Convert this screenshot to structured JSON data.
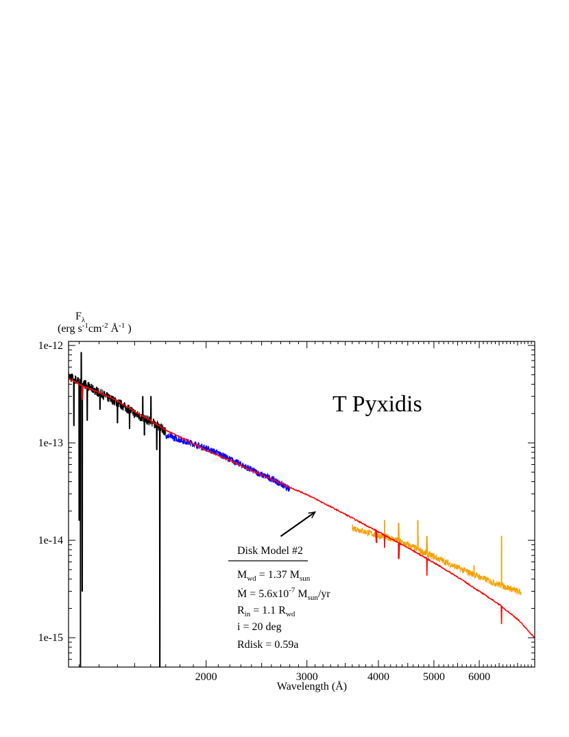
{
  "chart_data": {
    "type": "line",
    "title": "T Pyxidis",
    "xlabel": "Wavelength (Å)",
    "ylabel": {
      "line1": "F",
      "line1_sub": "λ",
      "line2_parts": [
        "(erg s",
        "-1",
        "cm",
        "-2",
        " Å",
        "-1",
        " )"
      ]
    },
    "x_scale": "log",
    "y_scale": "log",
    "xlim": [
      1150,
      7500
    ],
    "ylim": [
      5e-16,
      1.1e-12
    ],
    "x_ticks": [
      {
        "value": 2000,
        "label": "2000"
      },
      {
        "value": 3000,
        "label": "3000"
      },
      {
        "value": 4000,
        "label": "4000"
      },
      {
        "value": 5000,
        "label": "5000"
      },
      {
        "value": 6000,
        "label": "6000"
      }
    ],
    "y_ticks": [
      {
        "value": 1e-12,
        "label": "1e-12"
      },
      {
        "value": 1e-13,
        "label": "1e-13"
      },
      {
        "value": 1e-14,
        "label": "1e-14"
      },
      {
        "value": 1e-15,
        "label": "1e-15"
      }
    ],
    "grid": false,
    "series": [
      {
        "color": "#000000",
        "style": "noisy",
        "x": [
          1150,
          1180,
          1200,
          1230,
          1260,
          1300,
          1350,
          1400,
          1450,
          1500,
          1550,
          1600,
          1650,
          1700
        ],
        "y": [
          4.8e-13,
          4.5e-13,
          4.2e-13,
          4e-13,
          3.6e-13,
          3.3e-13,
          2.9e-13,
          2.6e-13,
          2.3e-13,
          2e-13,
          1.8e-13,
          1.65e-13,
          1.5e-13,
          1.3e-13
        ],
        "features": [
          {
            "x": 1175,
            "y": 1.5e-13
          },
          {
            "x": 1200,
            "y": 1.6e-14
          },
          {
            "x": 1207,
            "y": 5e-16
          },
          {
            "x": 1210,
            "y": 8.5e-13
          },
          {
            "x": 1215,
            "y": 3e-15
          },
          {
            "x": 1240,
            "y": 1.7e-13
          },
          {
            "x": 1305,
            "y": 2.2e-13
          },
          {
            "x": 1400,
            "y": 1.6e-13
          },
          {
            "x": 1470,
            "y": 1.4e-13
          },
          {
            "x": 1550,
            "y": 3e-13
          },
          {
            "x": 1560,
            "y": 1.2e-13
          },
          {
            "x": 1602,
            "y": 3e-13
          },
          {
            "x": 1640,
            "y": 8.5e-14
          },
          {
            "x": 1660,
            "y": 5e-16
          }
        ]
      },
      {
        "color": "#0000ff",
        "style": "noisy",
        "x": [
          1700,
          1800,
          1900,
          2000,
          2100,
          2200,
          2300,
          2400,
          2500,
          2600,
          2700,
          2800
        ],
        "y": [
          1.2e-13,
          1.08e-13,
          9.8e-14,
          8.8e-14,
          7.8e-14,
          6.8e-14,
          6e-14,
          5.3e-14,
          4.7e-14,
          4.3e-14,
          3.8e-14,
          3.3e-14
        ],
        "features": []
      },
      {
        "color": "#f5a000",
        "style": "noisy",
        "x": [
          3600,
          3800,
          4000,
          4200,
          4400,
          4600,
          4800,
          5000,
          5300,
          5600,
          5900,
          6200,
          6500,
          6800,
          7100
        ],
        "y": [
          1.35e-14,
          1.22e-14,
          1.12e-14,
          1.05e-14,
          9.5e-15,
          8.5e-15,
          7.5e-15,
          6.8e-15,
          5.8e-15,
          5e-15,
          4.4e-15,
          3.9e-15,
          3.5e-15,
          3.2e-15,
          2.9e-15
        ],
        "features": [
          {
            "x": 4100,
            "y": 1.6e-14
          },
          {
            "x": 4340,
            "y": 1.5e-14
          },
          {
            "x": 4686,
            "y": 1.6e-14
          },
          {
            "x": 4861,
            "y": 1.1e-14
          },
          {
            "x": 5876,
            "y": 5.5e-15
          },
          {
            "x": 6563,
            "y": 1.1e-14
          }
        ]
      },
      {
        "color": "#ff0000",
        "style": "model",
        "x": [
          1150,
          1200,
          1300,
          1400,
          1500,
          1600,
          1700,
          1800,
          2000,
          2200,
          2500,
          2800,
          3000,
          3500,
          4000,
          4500,
          5000,
          5500,
          6000,
          6500,
          7000,
          7500
        ],
        "y": [
          4.6e-13,
          4e-13,
          3.3e-13,
          2.7e-13,
          2.1e-13,
          1.7e-13,
          1.35e-13,
          1.15e-13,
          8.4e-14,
          6.6e-14,
          4.7e-14,
          3.5e-14,
          2.95e-14,
          1.85e-14,
          1.22e-14,
          8.4e-15,
          5.9e-15,
          4.2e-15,
          3e-15,
          2.2e-15,
          1.55e-15,
          1e-15
        ],
        "features": [
          {
            "x": 1215,
            "y": 2.8e-13
          },
          {
            "x": 3970,
            "y": 9.5e-15
          },
          {
            "x": 4100,
            "y": 8.5e-15
          },
          {
            "x": 4340,
            "y": 6.5e-15
          },
          {
            "x": 4861,
            "y": 4.4e-15
          },
          {
            "x": 6563,
            "y": 1.4e-15
          }
        ]
      }
    ],
    "annotation": {
      "arrow_tip": {
        "x": 3100,
        "y": 1.95e-14
      },
      "arrow_tail": {
        "x": 2700,
        "y": 1.1e-14
      },
      "model_title": "Disk Model #2",
      "lines": [
        [
          {
            "t": "M"
          },
          {
            "t": "wd",
            "sub": true
          },
          {
            "t": " = 1.37 M"
          },
          {
            "t": "sun",
            "sub": true
          }
        ],
        [
          {
            "t": "Ṁ = 5.6x10"
          },
          {
            "t": "-7",
            "sup": true
          },
          {
            "t": " M"
          },
          {
            "t": "sun",
            "sub": true
          },
          {
            "t": "/yr"
          }
        ],
        [
          {
            "t": "R"
          },
          {
            "t": "in",
            "sub": true
          },
          {
            "t": " = 1.1 R"
          },
          {
            "t": "wd",
            "sub": true
          }
        ],
        [
          {
            "t": "i = 20 deg"
          }
        ],
        [
          {
            "t": "Rdisk = 0.59a"
          }
        ]
      ]
    }
  }
}
